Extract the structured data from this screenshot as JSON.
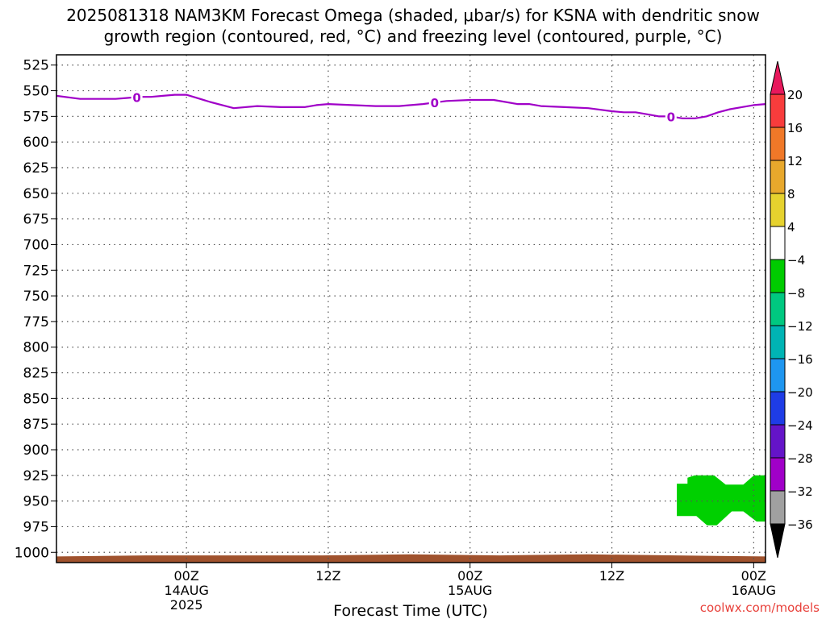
{
  "title": {
    "line1": "2025081318 NAM3KM Forecast Omega (shaded, μbar/s) for KSNA with dendritic snow",
    "line2": "growth region (contoured, red, °C) and freezing level (contoured, purple, °C)"
  },
  "credit": "coolwx.com/models",
  "chart_data": {
    "type": "area",
    "xlabel": "Forecast Time (UTC)",
    "ylabel": "",
    "x_range_hours": [
      -5,
      55
    ],
    "y_range_hpa": [
      515,
      1010
    ],
    "y_scale": "linear-reversed",
    "grid": true,
    "y_ticks": [
      525,
      550,
      575,
      600,
      625,
      650,
      675,
      700,
      725,
      750,
      775,
      800,
      825,
      850,
      875,
      900,
      925,
      950,
      975,
      1000
    ],
    "x_ticks": [
      {
        "hour": 6,
        "lines": [
          "00Z",
          "14AUG",
          "2025"
        ]
      },
      {
        "hour": 18,
        "lines": [
          "12Z"
        ]
      },
      {
        "hour": 30,
        "lines": [
          "00Z",
          "15AUG"
        ]
      },
      {
        "hour": 42,
        "lines": [
          "12Z"
        ]
      },
      {
        "hour": 54,
        "lines": [
          "00Z",
          "16AUG"
        ]
      }
    ],
    "series": [
      {
        "type": "contour",
        "color": "#a000c8",
        "contour_label": "0",
        "label_positions_hours": [
          1.8,
          27,
          47
        ],
        "x": [
          -5,
          -3,
          -1,
          0,
          1,
          2,
          3,
          4,
          5,
          6,
          8,
          10,
          12,
          14,
          16,
          17,
          18,
          20,
          22,
          24,
          26,
          28,
          30,
          32,
          34,
          35,
          36,
          38,
          40,
          42,
          43,
          44,
          45,
          46,
          47,
          48,
          49,
          50,
          51,
          52,
          53,
          54,
          55
        ],
        "values": [
          555,
          558,
          558,
          558,
          557,
          556,
          556,
          555,
          554,
          554,
          561,
          567,
          565,
          566,
          566,
          564,
          563,
          564,
          565,
          565,
          563,
          560,
          559,
          559,
          563,
          563,
          565,
          566,
          567,
          570,
          571,
          571,
          573,
          575,
          575,
          577,
          577,
          575,
          571,
          568,
          566,
          564,
          563
        ]
      }
    ],
    "shaded_regions": [
      {
        "color": "#00d000",
        "omega_range": [
          -8,
          -4
        ],
        "time_hours": [
          47.5,
          55.0
        ],
        "pressure_hpa": [
          925,
          970
        ]
      }
    ],
    "terrain": {
      "color": "#a0522d",
      "surface_hpa": [
        1004,
        1003,
        1003,
        1003,
        1002,
        1003,
        1002,
        1003,
        1004
      ]
    },
    "colorbar": {
      "labels": [
        20,
        16,
        12,
        8,
        4,
        -4,
        -8,
        -12,
        -16,
        -20,
        -24,
        -28,
        -32,
        -36
      ],
      "colors": [
        "#e8185c",
        "#f83c3c",
        "#f07828",
        "#e8a82c",
        "#e6d22e",
        "#ffffff",
        "#00cc00",
        "#00c880",
        "#00b4b4",
        "#1e96f0",
        "#1e3ce6",
        "#6414c8",
        "#a000c8",
        "#a0a0a0",
        "#000000"
      ]
    }
  }
}
